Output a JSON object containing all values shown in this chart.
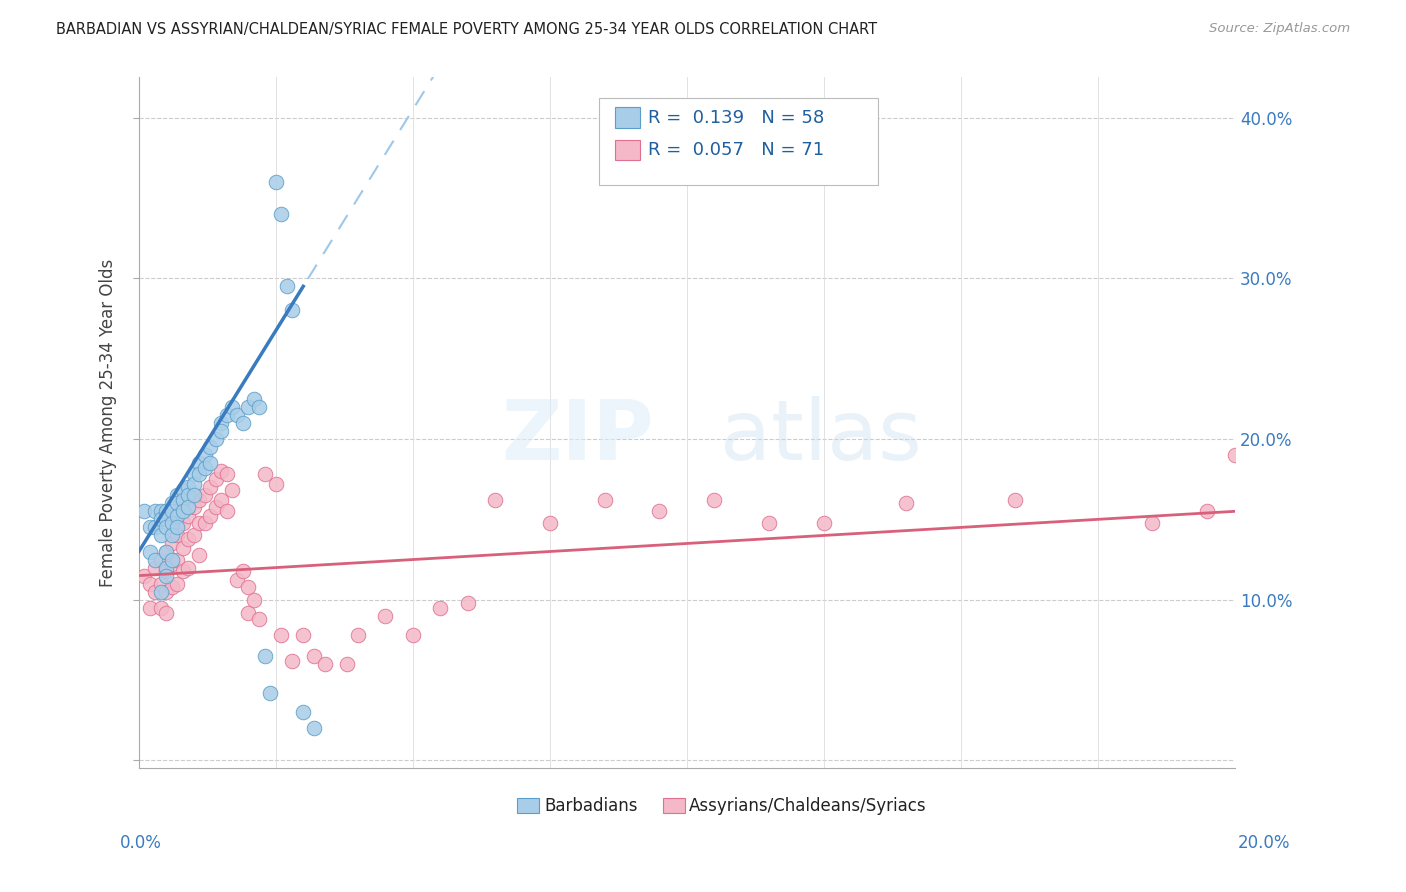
{
  "title": "BARBADIAN VS ASSYRIAN/CHALDEAN/SYRIAC FEMALE POVERTY AMONG 25-34 YEAR OLDS CORRELATION CHART",
  "source": "Source: ZipAtlas.com",
  "ylabel": "Female Poverty Among 25-34 Year Olds",
  "yticks": [
    0.0,
    0.1,
    0.2,
    0.3,
    0.4
  ],
  "ytick_labels": [
    "",
    "10.0%",
    "20.0%",
    "30.0%",
    "40.0%"
  ],
  "xlim": [
    0.0,
    0.2
  ],
  "ylim": [
    -0.005,
    0.425
  ],
  "blue_R": 0.139,
  "blue_N": 58,
  "pink_R": 0.057,
  "pink_N": 71,
  "blue_color": "#a8cde8",
  "blue_edge": "#5a9ec9",
  "pink_color": "#f4b8c8",
  "pink_edge": "#e07090",
  "trend_blue_solid": "#3a7bbf",
  "trend_blue_dashed": "#9fc8e8",
  "trend_pink_solid": "#d9607a",
  "legend_label_blue": "Barbadians",
  "legend_label_pink": "Assyrians/Chaldeans/Syriacs",
  "watermark_zip": "ZIP",
  "watermark_atlas": "atlas",
  "blue_x": [
    0.001,
    0.002,
    0.002,
    0.003,
    0.003,
    0.003,
    0.004,
    0.004,
    0.004,
    0.004,
    0.005,
    0.005,
    0.005,
    0.005,
    0.005,
    0.005,
    0.006,
    0.006,
    0.006,
    0.006,
    0.006,
    0.007,
    0.007,
    0.007,
    0.007,
    0.008,
    0.008,
    0.008,
    0.009,
    0.009,
    0.009,
    0.01,
    0.01,
    0.01,
    0.011,
    0.011,
    0.012,
    0.012,
    0.013,
    0.013,
    0.014,
    0.015,
    0.015,
    0.016,
    0.017,
    0.018,
    0.019,
    0.02,
    0.021,
    0.022,
    0.023,
    0.024,
    0.025,
    0.026,
    0.027,
    0.028,
    0.03,
    0.032
  ],
  "blue_y": [
    0.155,
    0.145,
    0.13,
    0.155,
    0.145,
    0.125,
    0.155,
    0.15,
    0.14,
    0.105,
    0.155,
    0.15,
    0.145,
    0.13,
    0.12,
    0.115,
    0.16,
    0.155,
    0.148,
    0.14,
    0.125,
    0.165,
    0.16,
    0.152,
    0.145,
    0.168,
    0.162,
    0.155,
    0.17,
    0.165,
    0.158,
    0.178,
    0.172,
    0.165,
    0.185,
    0.178,
    0.19,
    0.182,
    0.195,
    0.185,
    0.2,
    0.21,
    0.205,
    0.215,
    0.22,
    0.215,
    0.21,
    0.22,
    0.225,
    0.22,
    0.065,
    0.042,
    0.36,
    0.34,
    0.295,
    0.28,
    0.03,
    0.02
  ],
  "pink_x": [
    0.001,
    0.002,
    0.002,
    0.003,
    0.003,
    0.004,
    0.004,
    0.004,
    0.005,
    0.005,
    0.005,
    0.005,
    0.006,
    0.006,
    0.006,
    0.007,
    0.007,
    0.007,
    0.008,
    0.008,
    0.008,
    0.009,
    0.009,
    0.009,
    0.01,
    0.01,
    0.011,
    0.011,
    0.011,
    0.012,
    0.012,
    0.013,
    0.013,
    0.014,
    0.014,
    0.015,
    0.015,
    0.016,
    0.016,
    0.017,
    0.018,
    0.019,
    0.02,
    0.02,
    0.021,
    0.022,
    0.023,
    0.025,
    0.026,
    0.028,
    0.03,
    0.032,
    0.034,
    0.038,
    0.04,
    0.045,
    0.05,
    0.055,
    0.06,
    0.065,
    0.075,
    0.085,
    0.095,
    0.105,
    0.115,
    0.125,
    0.14,
    0.16,
    0.185,
    0.195,
    0.2
  ],
  "pink_y": [
    0.115,
    0.11,
    0.095,
    0.12,
    0.105,
    0.125,
    0.11,
    0.095,
    0.13,
    0.118,
    0.105,
    0.092,
    0.135,
    0.122,
    0.108,
    0.14,
    0.125,
    0.11,
    0.148,
    0.132,
    0.118,
    0.152,
    0.138,
    0.12,
    0.158,
    0.14,
    0.162,
    0.148,
    0.128,
    0.165,
    0.148,
    0.17,
    0.152,
    0.175,
    0.158,
    0.18,
    0.162,
    0.178,
    0.155,
    0.168,
    0.112,
    0.118,
    0.108,
    0.092,
    0.1,
    0.088,
    0.178,
    0.172,
    0.078,
    0.062,
    0.078,
    0.065,
    0.06,
    0.06,
    0.078,
    0.09,
    0.078,
    0.095,
    0.098,
    0.162,
    0.148,
    0.162,
    0.155,
    0.162,
    0.148,
    0.148,
    0.16,
    0.162,
    0.148,
    0.155,
    0.19
  ]
}
